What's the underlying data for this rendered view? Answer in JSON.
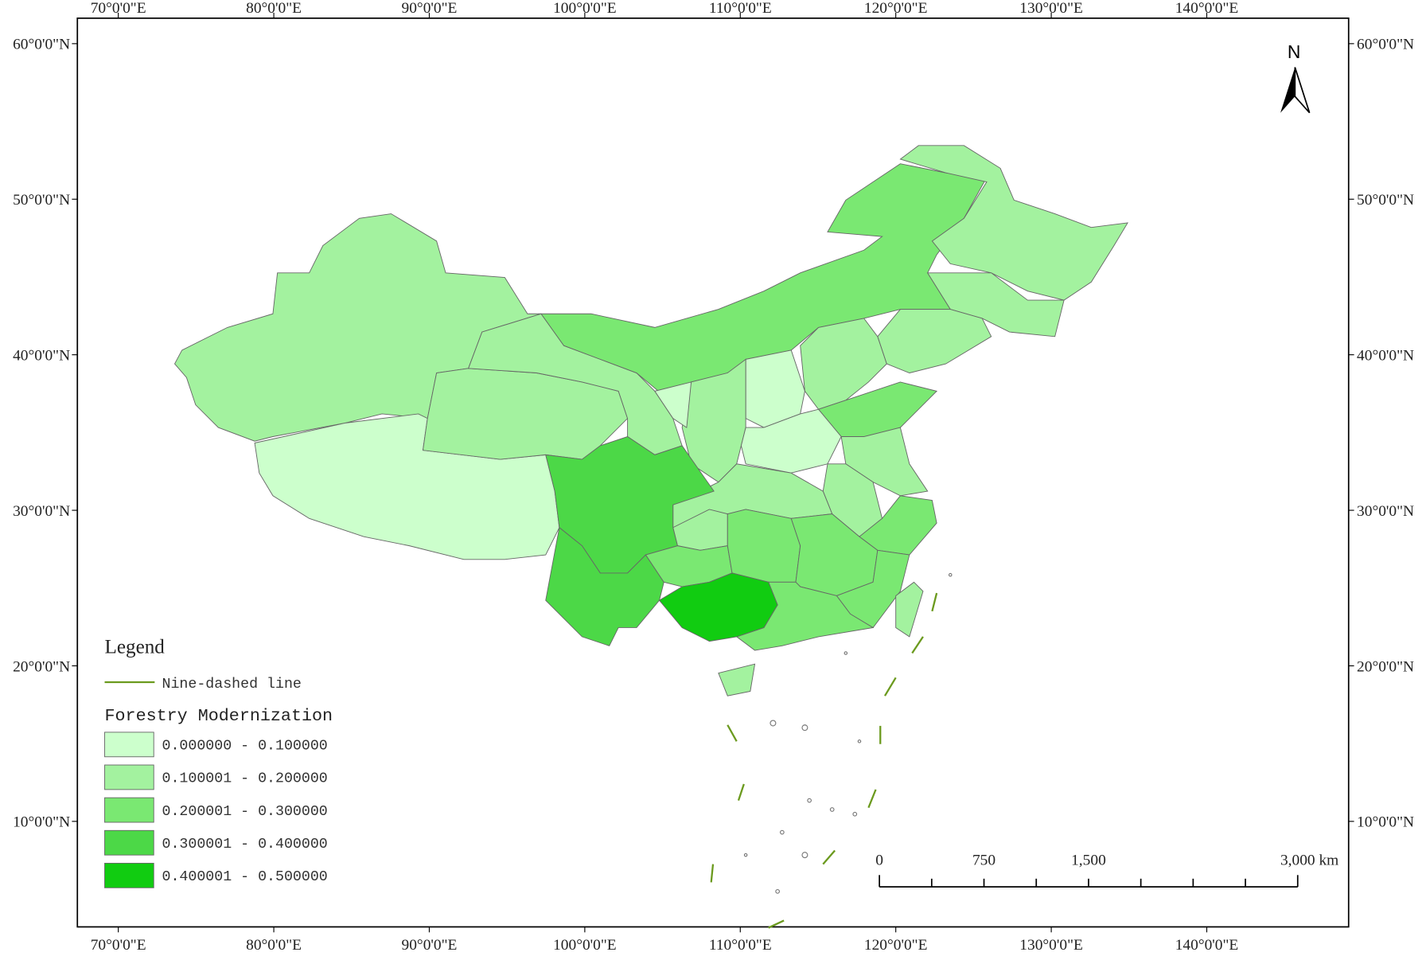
{
  "map": {
    "longitude_labels": [
      "70°0'0\"E",
      "80°0'0\"E",
      "90°0'0\"E",
      "100°0'0\"E",
      "110°0'0\"E",
      "120°0'0\"E",
      "130°0'0\"E",
      "140°0'0\"E"
    ],
    "latitude_labels": [
      "60°0'0\"N",
      "50°0'0\"N",
      "40°0'0\"N",
      "30°0'0\"N",
      "20°0'0\"N",
      "10°0'0\"N"
    ],
    "north_label": "N",
    "legend": {
      "title": "Legend",
      "line_label": "Nine-dashed line",
      "line_color": "#6b9a1e",
      "classification_title": "Forestry Modernization",
      "classes": [
        {
          "label": "0.000000 - 0.100000",
          "color": "#ccffcc"
        },
        {
          "label": "0.100001 - 0.200000",
          "color": "#a3f29f"
        },
        {
          "label": "0.200001 - 0.300000",
          "color": "#7ae872"
        },
        {
          "label": "0.300001 - 0.400000",
          "color": "#4cd847"
        },
        {
          "label": "0.400001 - 0.500000",
          "color": "#11cc11"
        }
      ]
    },
    "scale_bar": {
      "labels": [
        "0",
        "750",
        "1,500",
        "3,000 km"
      ]
    }
  }
}
